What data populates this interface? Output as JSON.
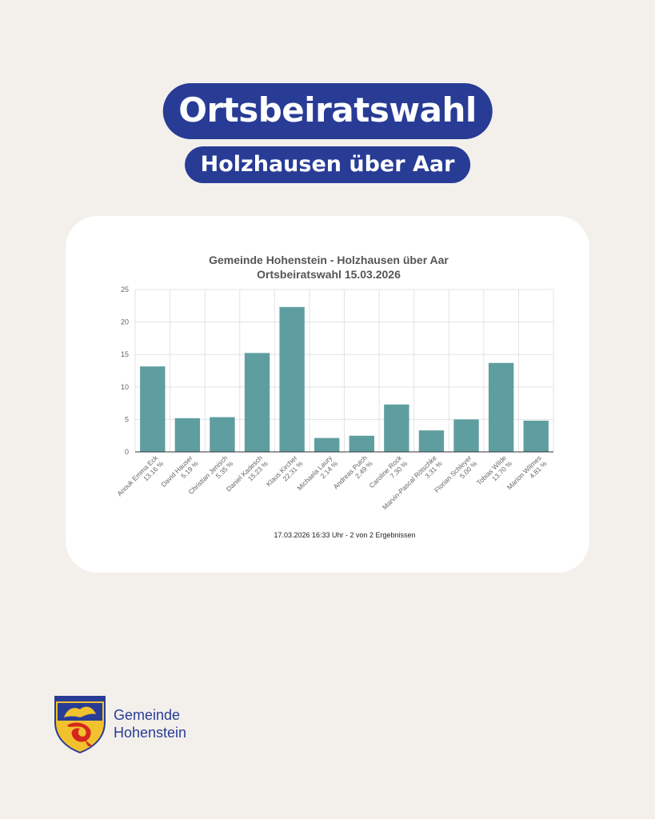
{
  "header": {
    "title": "Ortsbeiratswahl",
    "subtitle": "Holzhausen über Aar"
  },
  "chart_data": {
    "type": "bar",
    "title": "Gemeinde Hohenstein - Holzhausen über Aar",
    "subtitle": "Ortsbeiratswahl 15.03.2026",
    "categories": [
      "Anouk Emma Eck",
      "David Hauser",
      "Christian Jenisch",
      "Daniel Kadesch",
      "Klaus Kircher",
      "Michaela Laury",
      "Andreas Pulch",
      "Caroline Rock",
      "Marvin-Pascal Rötschke",
      "Florian Schleyer",
      "Tobias Wilde",
      "Marion Wilmes"
    ],
    "values": [
      13.16,
      5.19,
      5.35,
      15.23,
      22.31,
      2.14,
      2.49,
      7.3,
      3.31,
      5.0,
      13.7,
      4.81
    ],
    "value_labels": [
      "13.16 %",
      "5.19 %",
      "5.35 %",
      "15.23 %",
      "22.31 %",
      "2.14 %",
      "2.49 %",
      "7.30 %",
      "3.31 %",
      "5.00 %",
      "13.70 %",
      "4.81 %"
    ],
    "ylim": [
      0,
      25
    ],
    "yticks": [
      0,
      5,
      10,
      15,
      20,
      25
    ],
    "grid": true,
    "bar_color": "#5f9ea0",
    "footnote": "17.03.2026 16:33 Uhr - 2 von 2 Ergebnissen"
  },
  "brand": {
    "line1": "Gemeinde",
    "line2": "Hohenstein",
    "logo_icon": "coat-of-arms-icon"
  },
  "colors": {
    "accent": "#283c96",
    "background": "#f3f0ec"
  }
}
